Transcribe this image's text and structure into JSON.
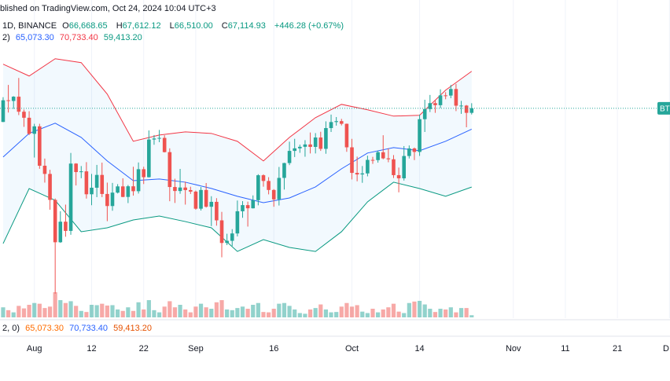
{
  "header": {
    "published": "blished on TradingView.com, Oct 24, 2024 10:04 UTC+3",
    "symbol": "1D, BINANCE",
    "ohlc": [
      [
        "O",
        "66,668.65"
      ],
      [
        "H",
        "67,612.12"
      ],
      [
        "L",
        "66,510.00"
      ],
      [
        "C",
        "67,114.93"
      ]
    ],
    "change": "+446.28 (+0.67%)",
    "bb_params": "2)",
    "bb_values": [
      "65,073.30",
      "70,733.40",
      "59,413.20"
    ]
  },
  "footer": {
    "params": "2, 0)",
    "values": [
      "65,073.30",
      "70,733.40",
      "59,413.20"
    ]
  },
  "chart_data": {
    "type": "candlestick",
    "up_color": "#26a69a",
    "down_color": "#ef5350",
    "xlim": [
      -0.6,
      128.1
    ],
    "xticks": [
      {
        "value": 6,
        "label": "Aug"
      },
      {
        "value": 17,
        "label": "12"
      },
      {
        "value": 27,
        "label": "22"
      },
      {
        "value": 37,
        "label": "Sep"
      },
      {
        "value": 52,
        "label": "16"
      },
      {
        "value": 67,
        "label": "Oct"
      },
      {
        "value": 80,
        "label": "14"
      },
      {
        "value": 98,
        "label": "Nov"
      },
      {
        "value": 108,
        "label": "11"
      },
      {
        "value": 118,
        "label": "21"
      },
      {
        "value": 128,
        "label": "D"
      }
    ],
    "ylim": [
      46600,
      77700
    ],
    "open": [
      65780,
      67900,
      67830,
      68250,
      66780,
      66190,
      64620,
      65350,
      61500,
      60700,
      58160,
      54020,
      56030,
      55130,
      61710,
      60880,
      60950,
      58710,
      59350,
      60600,
      58740,
      57560,
      58870,
      59480,
      58450,
      59490,
      59010,
      61160,
      60380,
      64060,
      64160,
      64220,
      62830,
      59420,
      59030,
      59370,
      59120,
      58970,
      57300,
      59130,
      57490,
      57970,
      56160,
      53950,
      54160,
      54880,
      57050,
      57650,
      57340,
      58130,
      60570,
      60010,
      59130,
      58210,
      60310,
      61760,
      62950,
      63200,
      63350,
      63580,
      63340,
      64260,
      63150,
      65180,
      65770,
      65860,
      65600,
      63300,
      60800,
      60650,
      60750,
      62070,
      62050,
      62820,
      62220,
      62130,
      60580,
      60270,
      62450,
      63190,
      62850,
      66050,
      67040,
      67620,
      67420,
      68380,
      68360,
      69000,
      67370,
      67380,
      66668.65
    ],
    "high": [
      68200,
      69400,
      68300,
      70080,
      66990,
      66830,
      65600,
      65600,
      62200,
      61100,
      58300,
      57050,
      57700,
      62750,
      61750,
      61470,
      61850,
      60700,
      61580,
      61800,
      59850,
      59820,
      59700,
      60270,
      59620,
      61400,
      61820,
      61400,
      64950,
      64500,
      65000,
      64480,
      63200,
      60230,
      61190,
      59940,
      59450,
      59070,
      59420,
      59810,
      58520,
      58330,
      56990,
      54850,
      55300,
      58100,
      58040,
      57990,
      58600,
      60670,
      60660,
      60380,
      59210,
      61380,
      61790,
      63850,
      64130,
      63560,
      64000,
      64750,
      64690,
      64820,
      65840,
      66500,
      66260,
      66080,
      65620,
      64130,
      62390,
      61470,
      62480,
      62370,
      62980,
      64480,
      63200,
      62540,
      61320,
      63420,
      63480,
      63280,
      66500,
      67950,
      68420,
      67940,
      68970,
      68690,
      69400,
      69500,
      67840,
      67440,
      67612.12
    ],
    "low": [
      65760,
      66700,
      67050,
      66450,
      65300,
      64500,
      62300,
      61200,
      59850,
      57200,
      49000,
      53960,
      54560,
      54750,
      59570,
      60280,
      58290,
      57640,
      58430,
      58430,
      56080,
      57100,
      58790,
      58420,
      57850,
      58580,
      58780,
      59710,
      60350,
      63550,
      63800,
      62800,
      58030,
      57860,
      58760,
      57700,
      58740,
      57200,
      57120,
      57410,
      55600,
      55640,
      52550,
      53740,
      53650,
      54590,
      56410,
      55550,
      57320,
      57630,
      59450,
      58700,
      57490,
      57610,
      59170,
      61560,
      62350,
      62760,
      62380,
      62700,
      62700,
      62950,
      62670,
      64800,
      65420,
      65440,
      62860,
      60160,
      59980,
      59830,
      60460,
      61680,
      61800,
      62130,
      61840,
      60300,
      58900,
      60050,
      62210,
      62050,
      62460,
      64800,
      66750,
      66670,
      67130,
      68000,
      68100,
      66840,
      66570,
      65260,
      66510
    ],
    "close": [
      67900,
      67830,
      68250,
      66780,
      66190,
      64620,
      65350,
      61500,
      60700,
      58160,
      54020,
      56030,
      55130,
      61710,
      60880,
      60950,
      58710,
      59350,
      60600,
      58740,
      57560,
      58870,
      59480,
      58450,
      59490,
      59010,
      61160,
      60380,
      64060,
      64160,
      64220,
      62830,
      59420,
      59030,
      59370,
      59120,
      58970,
      57300,
      59130,
      57490,
      57970,
      56160,
      53950,
      54160,
      54880,
      57050,
      57650,
      57340,
      58130,
      60570,
      60010,
      59130,
      58210,
      60310,
      61760,
      62950,
      63200,
      63350,
      63580,
      63340,
      64260,
      63150,
      65180,
      65770,
      65860,
      65600,
      63300,
      60800,
      60650,
      60750,
      62070,
      62050,
      62820,
      62220,
      62130,
      60580,
      60270,
      62450,
      63190,
      62850,
      66050,
      67040,
      67620,
      67420,
      68380,
      68360,
      69000,
      67370,
      67380,
      66670,
      67114.93
    ],
    "volume": [
      28000,
      20000,
      14000,
      32000,
      25000,
      35000,
      40000,
      38000,
      26000,
      30000,
      70000,
      48000,
      40000,
      45000,
      32000,
      18000,
      15000,
      35000,
      34000,
      38000,
      33000,
      34000,
      22000,
      18000,
      28000,
      18000,
      42000,
      22000,
      48000,
      20000,
      14000,
      30000,
      45000,
      28000,
      35000,
      22000,
      14000,
      30000,
      38000,
      28000,
      24000,
      42000,
      48000,
      22000,
      20000,
      26000,
      30000,
      24000,
      35000,
      40000,
      15000,
      14000,
      24000,
      38000,
      40000,
      32000,
      22000,
      12000,
      10000,
      22000,
      26000,
      36000,
      22000,
      14000,
      15000,
      30000,
      40000,
      30000,
      34000,
      16000,
      12000,
      24000,
      14000,
      22000,
      28000,
      38000,
      16000,
      12000,
      40000,
      44000,
      46000,
      36000,
      24000,
      15000,
      24000,
      22000,
      28000,
      14000,
      26000,
      26000,
      6000
    ],
    "bands": {
      "x": [
        0,
        5,
        10,
        15,
        20,
        25,
        30,
        35,
        40,
        45,
        50,
        55,
        60,
        65,
        70,
        75,
        80,
        85,
        90
      ],
      "upper": [
        71425,
        70270,
        71960,
        71580,
        68500,
        63890,
        64500,
        64810,
        64660,
        63890,
        61970,
        64270,
        66200,
        67500,
        66970,
        66350,
        66430,
        68890,
        70733.4
      ],
      "basis": [
        62350,
        64660,
        65660,
        64270,
        61970,
        60040,
        60200,
        59890,
        59280,
        58510,
        57890,
        58350,
        59430,
        61200,
        62740,
        63270,
        62970,
        63890,
        65073.3
      ],
      "lower": [
        53890,
        59270,
        58120,
        55050,
        55430,
        56200,
        56580,
        56040,
        55430,
        53120,
        54280,
        53510,
        53120,
        55050,
        57970,
        59890,
        59270,
        58510,
        59413.2
      ],
      "upper_color": "#f23645",
      "basis_color": "#2962ff",
      "lower_color": "#089981"
    },
    "price_label": "BT"
  }
}
